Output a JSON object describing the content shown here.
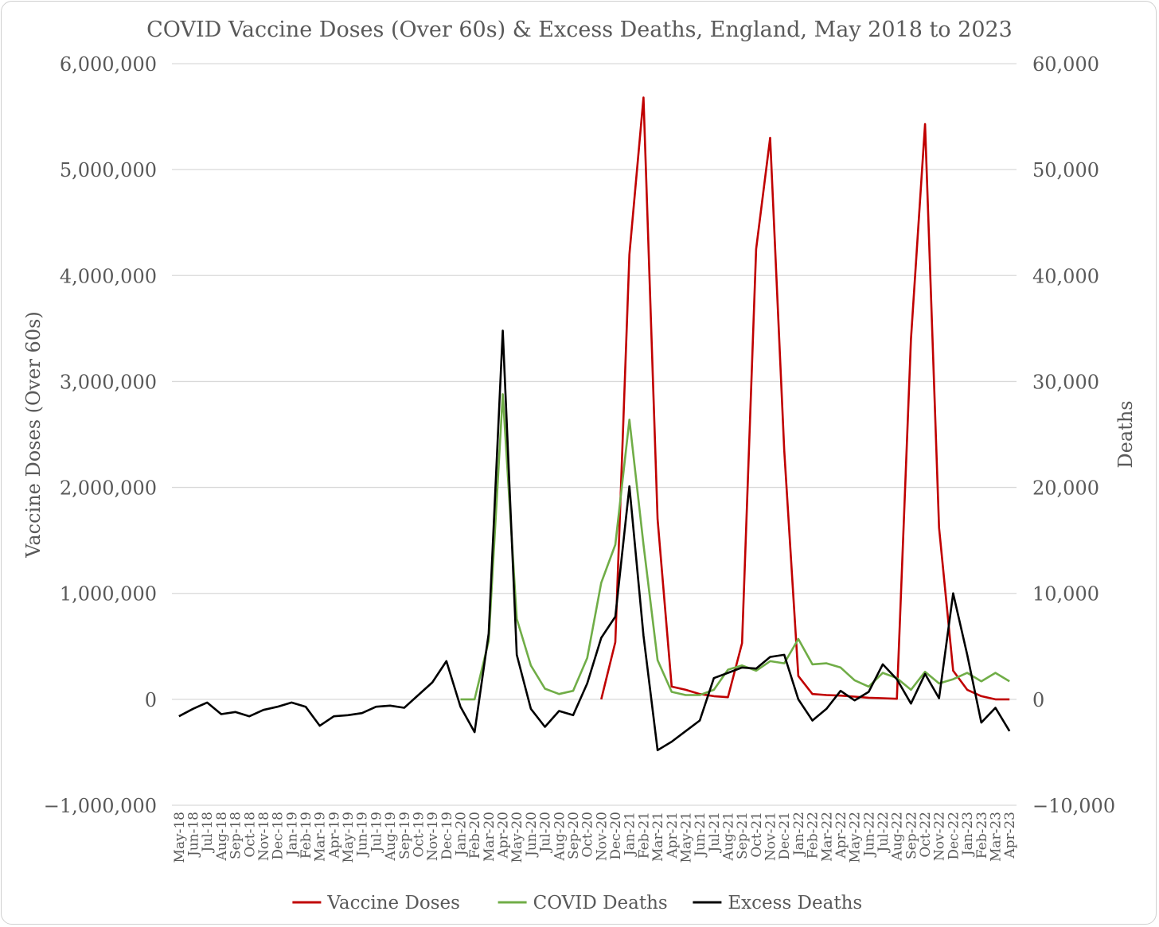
{
  "chart_data": {
    "type": "line",
    "title": "COVID Vaccine Doses (Over 60s) & Excess Deaths, England, May 2018 to 2023",
    "y_left_label": "Vaccine Doses (Over 60s)",
    "y_right_label": "Deaths",
    "y_left_range": [
      -1000000,
      6000000
    ],
    "y_right_range": [
      -10000,
      60000
    ],
    "y_left_ticks": [
      "−1,000,000",
      "0",
      "1,000,000",
      "2,000,000",
      "3,000,000",
      "4,000,000",
      "5,000,000",
      "6,000,000"
    ],
    "y_right_ticks": [
      "−10,000",
      "0",
      "10,000",
      "20,000",
      "30,000",
      "40,000",
      "50,000",
      "60,000"
    ],
    "grid": "horizontal",
    "legend_position": "bottom",
    "categories": [
      "May-18",
      "Jun-18",
      "Jul-18",
      "Aug-18",
      "Sep-18",
      "Oct-18",
      "Nov-18",
      "Dec-18",
      "Jan-19",
      "Feb-19",
      "Mar-19",
      "Apr-19",
      "May-19",
      "Jun-19",
      "Jul-19",
      "Aug-19",
      "Sep-19",
      "Oct-19",
      "Nov-19",
      "Dec-19",
      "Jan-20",
      "Feb-20",
      "Mar-20",
      "Apr-20",
      "May-20",
      "Jun-20",
      "Jul-20",
      "Aug-20",
      "Sep-20",
      "Oct-20",
      "Nov-20",
      "Dec-20",
      "Jan-21",
      "Feb-21",
      "Mar-21",
      "Apr-21",
      "May-21",
      "Jun-21",
      "Jul-21",
      "Aug-21",
      "Sep-21",
      "Oct-21",
      "Nov-21",
      "Dec-21",
      "Jan-22",
      "Feb-22",
      "Mar-22",
      "Apr-22",
      "May-22",
      "Jun-22",
      "Jul-22",
      "Aug-22",
      "Sep-22",
      "Oct-22",
      "Nov-22",
      "Dec-22",
      "Jan-23",
      "Feb-23",
      "Mar-23",
      "Apr-23"
    ],
    "series": [
      {
        "name": "Vaccine Doses",
        "axis": "left",
        "color": "#c00000",
        "values": [
          null,
          null,
          null,
          null,
          null,
          null,
          null,
          null,
          null,
          null,
          null,
          null,
          null,
          null,
          null,
          null,
          null,
          null,
          null,
          null,
          null,
          null,
          null,
          null,
          null,
          null,
          null,
          null,
          null,
          null,
          0,
          540000,
          4200000,
          5680000,
          1700000,
          120000,
          90000,
          50000,
          30000,
          20000,
          530000,
          4250000,
          5300000,
          2350000,
          220000,
          50000,
          40000,
          35000,
          25000,
          15000,
          10000,
          5000,
          3400000,
          5430000,
          1620000,
          270000,
          90000,
          30000,
          0,
          0
        ]
      },
      {
        "name": "COVID Deaths",
        "axis": "right",
        "color": "#70ad47",
        "values": [
          null,
          null,
          null,
          null,
          null,
          null,
          null,
          null,
          null,
          null,
          null,
          null,
          null,
          null,
          null,
          null,
          null,
          null,
          null,
          null,
          0,
          0,
          5500,
          28800,
          7600,
          3200,
          1000,
          500,
          800,
          3900,
          11000,
          14600,
          26400,
          14600,
          3700,
          700,
          400,
          400,
          900,
          2800,
          3200,
          2700,
          3600,
          3400,
          5700,
          3300,
          3400,
          3000,
          1800,
          1200,
          2500,
          2000,
          900,
          2600,
          1500,
          1900,
          2500,
          1700,
          2500,
          1700
        ]
      },
      {
        "name": "Excess Deaths",
        "axis": "right",
        "color": "#000000",
        "values": [
          -1600,
          -900,
          -300,
          -1400,
          -1200,
          -1600,
          -1000,
          -700,
          -300,
          -700,
          -2500,
          -1600,
          -1500,
          -1300,
          -700,
          -600,
          -800,
          400,
          1600,
          3600,
          -700,
          -3100,
          6200,
          34800,
          4200,
          -900,
          -2600,
          -1100,
          -1500,
          1500,
          5800,
          7800,
          20100,
          6000,
          -4800,
          -4000,
          -3000,
          -2000,
          2000,
          2500,
          3000,
          2900,
          4000,
          4200,
          0,
          -2000,
          -900,
          800,
          -100,
          700,
          3300,
          1900,
          -400,
          2400,
          100,
          10000,
          4200,
          -2200,
          -800,
          -3000
        ]
      }
    ]
  }
}
